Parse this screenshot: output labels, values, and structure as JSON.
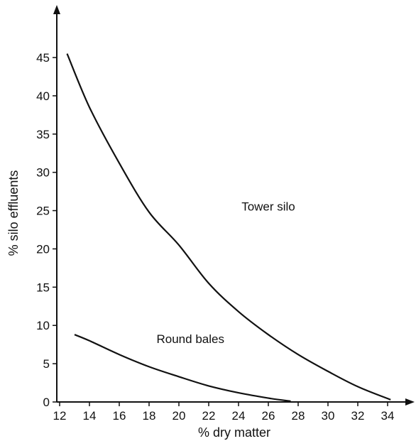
{
  "chart_data": {
    "type": "line",
    "title": "",
    "xlabel": "% dry matter",
    "ylabel": "% silo effluents",
    "xlim": [
      12,
      35
    ],
    "ylim": [
      0,
      47
    ],
    "x_ticks": [
      12,
      14,
      16,
      18,
      20,
      22,
      24,
      26,
      28,
      30,
      32,
      34
    ],
    "y_ticks": [
      0,
      5,
      10,
      15,
      20,
      25,
      30,
      35,
      40,
      45
    ],
    "grid": false,
    "legend": "none",
    "series": [
      {
        "name": "Tower silo",
        "x": [
          12.5,
          14,
          16,
          18,
          20,
          22,
          24,
          26,
          28,
          30,
          32,
          34.2
        ],
        "y": [
          45.5,
          38.5,
          31.2,
          24.8,
          20.5,
          15.5,
          11.8,
          8.8,
          6.2,
          4.0,
          2.0,
          0.3
        ]
      },
      {
        "name": "Round bales",
        "x": [
          13,
          14,
          16,
          18,
          20,
          22,
          24,
          26,
          27.5
        ],
        "y": [
          8.8,
          8.0,
          6.2,
          4.6,
          3.3,
          2.1,
          1.2,
          0.5,
          0.1
        ]
      }
    ],
    "annotations": [
      {
        "text": "Tower silo",
        "x": 24.2,
        "y": 25
      },
      {
        "text": "Round bales",
        "x": 18.5,
        "y": 7.7
      }
    ]
  }
}
